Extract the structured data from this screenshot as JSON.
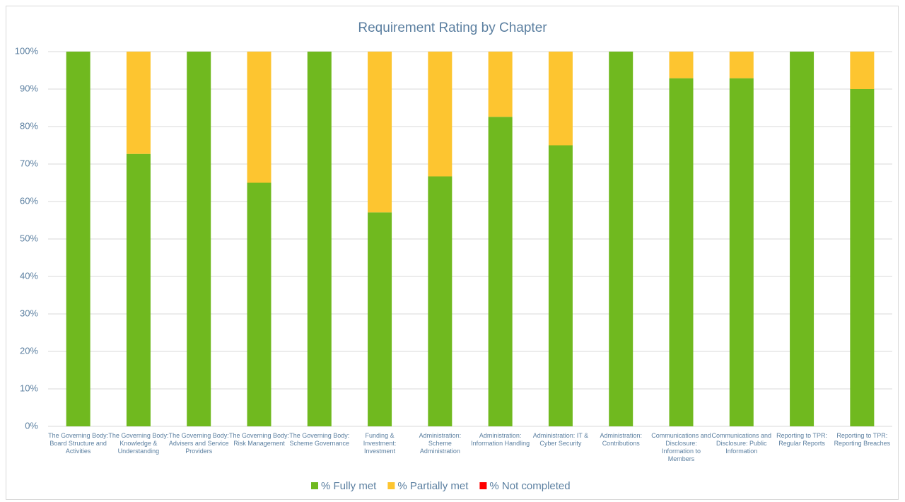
{
  "chart_data": {
    "type": "stacked_bar",
    "title": "Requirement Rating by Chapter",
    "categories": [
      "The Governing Body: Board Structure and Activities",
      "The Governing Body: Knowledge & Understanding",
      "The Governing Body: Advisers and Service Providers",
      "The Governing Body: Risk Management",
      "The Governing Body: Scheme Governance",
      "Funding & Investment: Investment",
      "Administration: Scheme Administration",
      "Administration: Information Handling",
      "Administration: IT & Cyber Security",
      "Administration: Contributions",
      "Communications and Disclosure: Information to Members",
      "Communications and Disclosure: Public Information",
      "Reporting to TPR: Regular Reports",
      "Reporting to TPR: Reporting Breaches"
    ],
    "series": [
      {
        "name": "% Fully met",
        "color": "#70b91f",
        "values": [
          100,
          72.7,
          100,
          65,
          100,
          57.1,
          66.7,
          82.6,
          75,
          100,
          92.9,
          92.9,
          100,
          90
        ]
      },
      {
        "name": "% Partially met",
        "color": "#fdc530",
        "values": [
          0,
          27.3,
          0,
          35,
          0,
          42.9,
          33.3,
          17.4,
          25,
          0,
          7.1,
          7.1,
          0,
          10
        ]
      },
      {
        "name": "% Not completed",
        "color": "#ff0000",
        "values": [
          0,
          0,
          0,
          0,
          0,
          0,
          0,
          0,
          0,
          0,
          0,
          0,
          0,
          0
        ]
      }
    ],
    "ylim": [
      0,
      100
    ],
    "yticks": [
      {
        "value": 0,
        "label": "0%"
      },
      {
        "value": 10,
        "label": "10%"
      },
      {
        "value": 20,
        "label": "20%"
      },
      {
        "value": 30,
        "label": "30%"
      },
      {
        "value": 40,
        "label": "40%"
      },
      {
        "value": 50,
        "label": "50%"
      },
      {
        "value": 60,
        "label": "60%"
      },
      {
        "value": 70,
        "label": "70%"
      },
      {
        "value": 80,
        "label": "80%"
      },
      {
        "value": 90,
        "label": "90%"
      },
      {
        "value": 100,
        "label": "100%"
      }
    ],
    "grid": true,
    "legend": "bottom"
  }
}
